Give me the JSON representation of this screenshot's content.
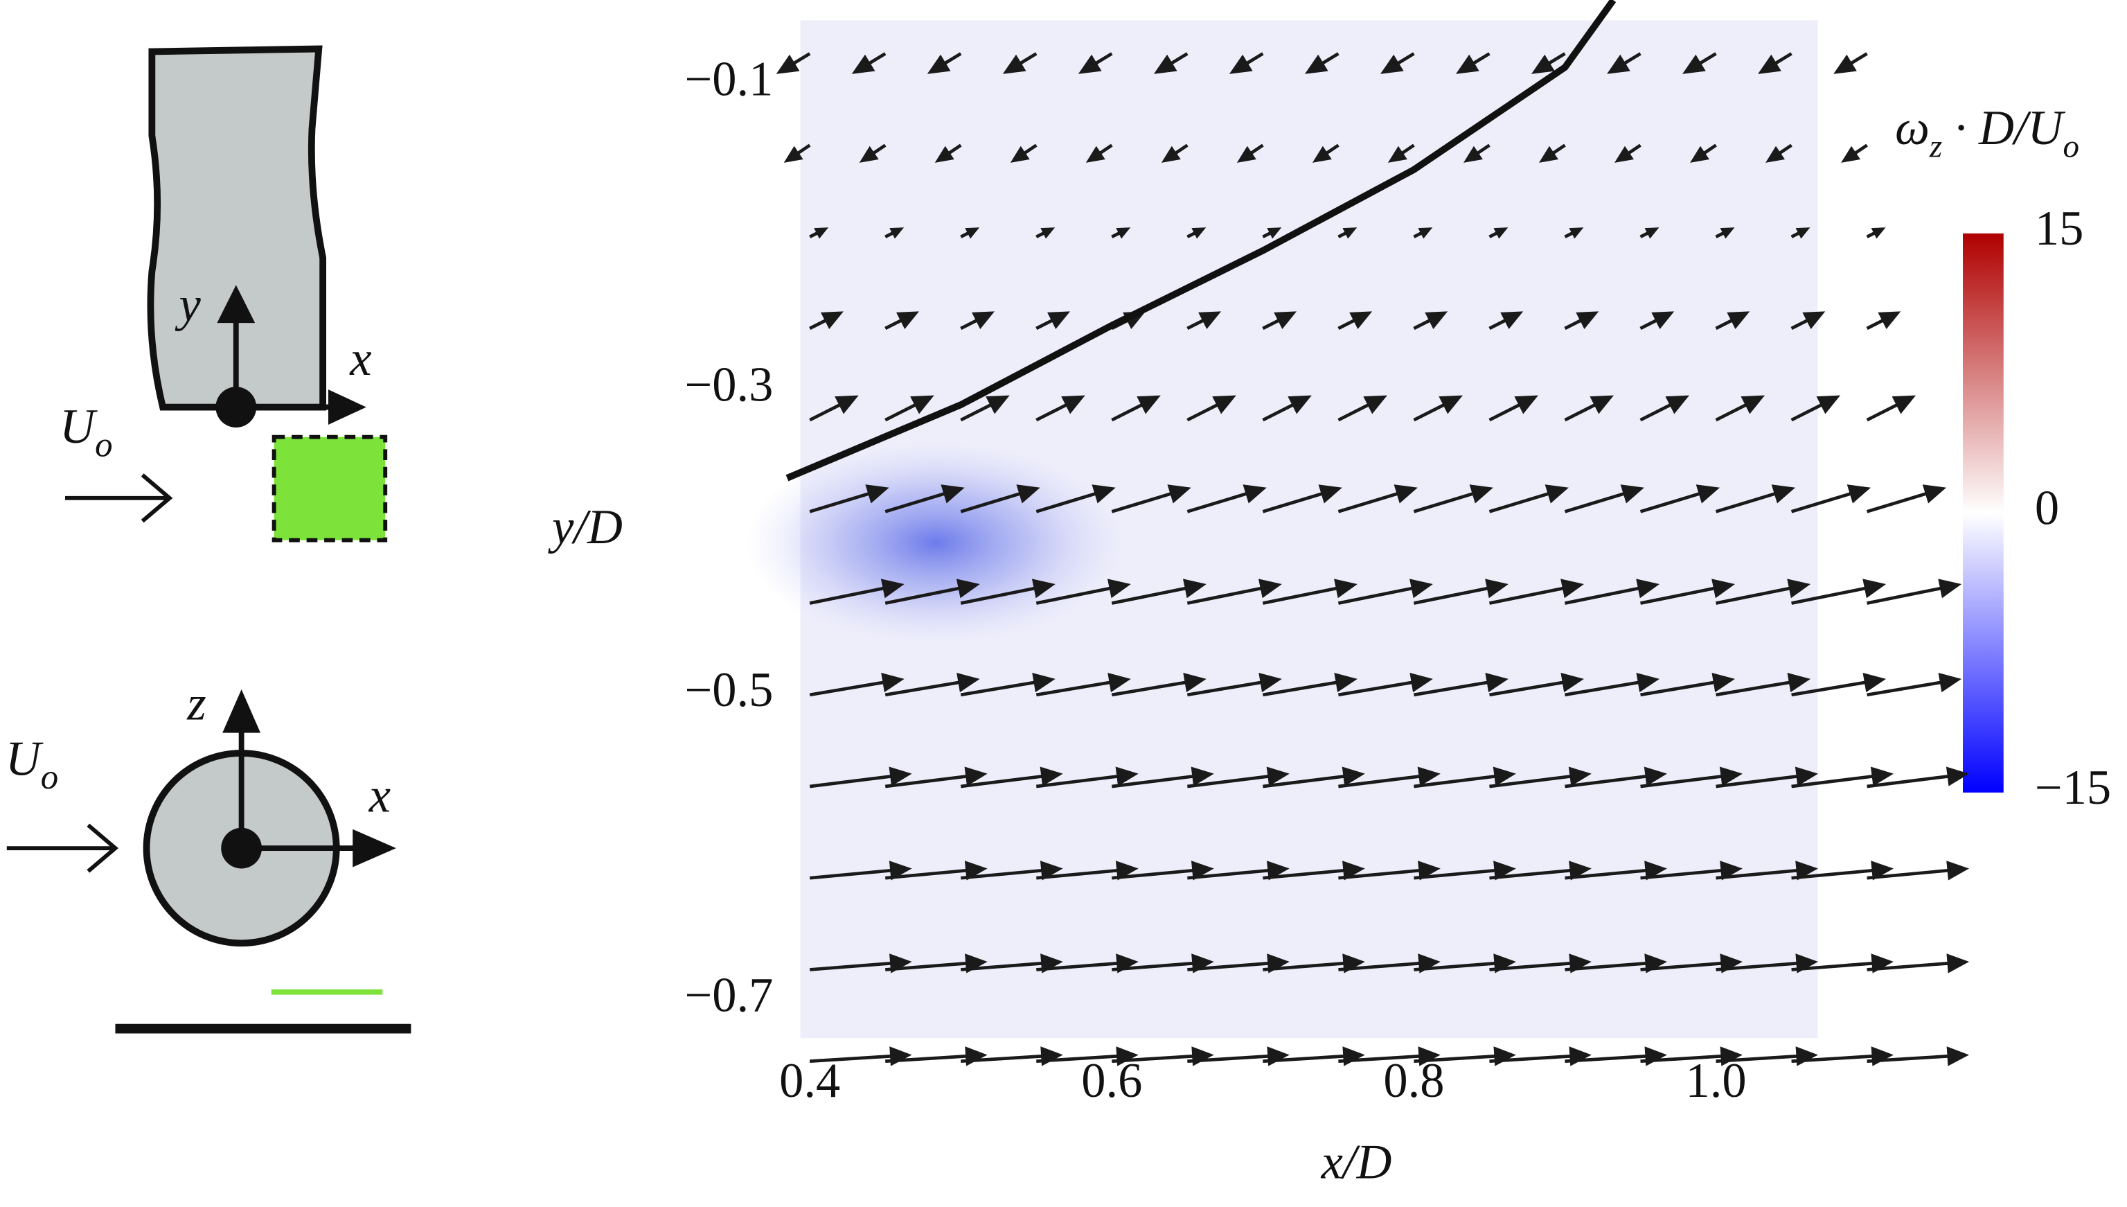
{
  "chart_data": {
    "type": "quiver",
    "xlabel": "x/D",
    "ylabel": "y/D",
    "xlim": [
      0.38,
      1.12
    ],
    "ylim": [
      -0.76,
      -0.05
    ],
    "xticks": [
      0.4,
      0.6,
      0.8,
      {
        "value": 1,
        "label": "1.0"
      }
    ],
    "yticks": [
      {
        "value": -0.1,
        "label": "−0.1"
      },
      {
        "value": -0.3,
        "label": "−0.3"
      },
      {
        "value": -0.5,
        "label": "−0.5"
      },
      {
        "value": -0.7,
        "label": "−0.7"
      }
    ],
    "arrow_color": "#1a1a1a",
    "columns": [
      0.4,
      0.45,
      0.5,
      0.55,
      0.6,
      0.65,
      0.7,
      0.75,
      0.8,
      0.85,
      0.9,
      0.95,
      1.0,
      1.05,
      1.1
    ],
    "rows": [
      {
        "y": -0.08,
        "u": -0.02,
        "v": -0.012
      },
      {
        "y": -0.14,
        "u": -0.015,
        "v": -0.01
      },
      {
        "y": -0.2,
        "u": 0.01,
        "v": 0.005
      },
      {
        "y": -0.26,
        "u": 0.02,
        "v": 0.01
      },
      {
        "y": -0.32,
        "u": 0.03,
        "v": 0.015
      },
      {
        "y": -0.38,
        "u": 0.05,
        "v": 0.015
      },
      {
        "y": -0.44,
        "u": 0.06,
        "v": 0.012
      },
      {
        "y": -0.5,
        "u": 0.06,
        "v": 0.01
      },
      {
        "y": -0.56,
        "u": 0.065,
        "v": 0.008
      },
      {
        "y": -0.62,
        "u": 0.065,
        "v": 0.006
      },
      {
        "y": -0.68,
        "u": 0.065,
        "v": 0.005
      },
      {
        "y": -0.74,
        "u": 0.065,
        "v": 0.004
      }
    ],
    "curve": {
      "x": [
        0.385,
        0.5,
        0.6,
        0.7,
        0.8,
        0.9,
        0.932
      ],
      "y": [
        -0.358,
        -0.31,
        -0.258,
        -0.209,
        -0.156,
        -0.089,
        -0.045
      ],
      "color": "#111111"
    },
    "colorbar": {
      "label": [
        "ω",
        "z",
        " · D/U",
        "o"
      ],
      "clim": [
        -15,
        15
      ],
      "ticks": [
        15,
        0,
        {
          "value": -15,
          "label": "−15"
        }
      ],
      "colors": [
        "#0000ff",
        "#ffffff",
        "#b00000"
      ]
    },
    "schematic_labels": [
      "y",
      "x",
      "U",
      "o",
      "z",
      "x",
      "U",
      "o"
    ]
  }
}
